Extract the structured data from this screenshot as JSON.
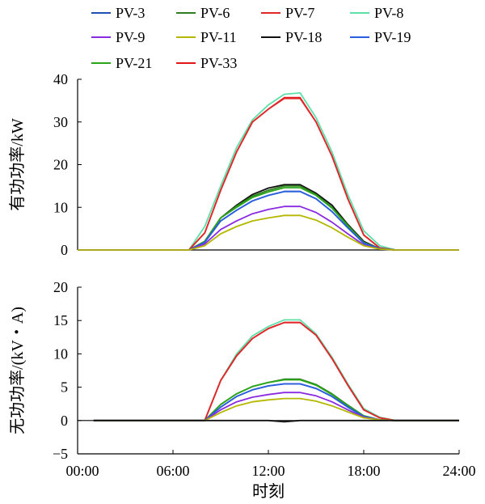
{
  "chart_data": {
    "type": "line",
    "legend": {
      "placement": "top",
      "entries": [
        {
          "name": "PV-3",
          "color": "#1f4fb4"
        },
        {
          "name": "PV-6",
          "color": "#2e7d1e"
        },
        {
          "name": "PV-7",
          "color": "#e0282b"
        },
        {
          "name": "PV-8",
          "color": "#5de0a8"
        },
        {
          "name": "PV-9",
          "color": "#8a2be2"
        },
        {
          "name": "PV-11",
          "color": "#b5b800"
        },
        {
          "name": "PV-18",
          "color": "#111111"
        },
        {
          "name": "PV-19",
          "color": "#2a5fe0"
        },
        {
          "name": "PV-21",
          "color": "#2aa61a"
        },
        {
          "name": "PV-33",
          "color": "#e01818"
        }
      ]
    },
    "x_axis": {
      "label": "时刻",
      "min": 0,
      "max": 24,
      "ticks": [
        0,
        6,
        12,
        18,
        24
      ],
      "tick_labels": [
        "00:00",
        "06:00",
        "12:00",
        "18:00",
        "24:00"
      ]
    },
    "panels": [
      {
        "id": "active",
        "ylabel": "有功功率/kW",
        "ylim": [
          0,
          40
        ],
        "ticks": [
          0,
          10,
          20,
          30,
          40
        ],
        "tick_labels": [
          "0",
          "10",
          "20",
          "30",
          "40"
        ],
        "series": [
          {
            "name": "PV-8",
            "x": [
              0,
              7,
              8,
              9,
              10,
              11,
              12,
              13,
              14,
              15,
              16,
              17,
              18,
              19,
              20,
              24
            ],
            "y": [
              0,
              0,
              5.5,
              15,
              24,
              30.5,
              34,
              36.5,
              36.8,
              31,
              23,
              13,
              4.5,
              1,
              0,
              0
            ]
          },
          {
            "name": "PV-33",
            "x": [
              0,
              7,
              8,
              9,
              10,
              11,
              12,
              13,
              14,
              15,
              16,
              17,
              18,
              19,
              20,
              24
            ],
            "y": [
              0,
              0,
              4,
              14,
              23,
              30,
              33,
              35.7,
              35.7,
              30,
              22,
              12,
              3.5,
              0.5,
              0,
              0
            ]
          },
          {
            "name": "PV-7",
            "x": [
              0,
              7,
              8,
              9,
              10,
              11,
              12,
              13,
              14,
              15,
              16,
              17,
              18,
              19,
              20,
              24
            ],
            "y": [
              0,
              0,
              4,
              14,
              23,
              30,
              33,
              35.5,
              35.5,
              30,
              22,
              12,
              3.5,
              0.5,
              0,
              0
            ]
          },
          {
            "name": "PV-18",
            "x": [
              0,
              7,
              8,
              9,
              10,
              11,
              12,
              13,
              14,
              15,
              16,
              17,
              18,
              19,
              20,
              24
            ],
            "y": [
              0,
              0,
              2,
              7.5,
              10.5,
              13,
              14.5,
              15.3,
              15.3,
              13.3,
              10.5,
              6,
              2,
              0.3,
              0,
              0
            ]
          },
          {
            "name": "PV-6",
            "x": [
              0,
              7,
              8,
              9,
              10,
              11,
              12,
              13,
              14,
              15,
              16,
              17,
              18,
              19,
              20,
              24
            ],
            "y": [
              0,
              0,
              2,
              7.5,
              10.3,
              12.6,
              14,
              15,
              15,
              13,
              10,
              5.8,
              1.8,
              0.3,
              0,
              0
            ]
          },
          {
            "name": "PV-21",
            "x": [
              0,
              7,
              8,
              9,
              10,
              11,
              12,
              13,
              14,
              15,
              16,
              17,
              18,
              19,
              20,
              24
            ],
            "y": [
              0,
              0,
              2,
              7.5,
              10,
              12.3,
              13.6,
              14.6,
              14.6,
              12.8,
              9.8,
              5.6,
              1.7,
              0.3,
              0,
              0
            ]
          },
          {
            "name": "PV-3",
            "x": [
              0,
              7,
              8,
              9,
              10,
              11,
              12,
              13,
              14,
              15,
              16,
              17,
              18,
              19,
              20,
              24
            ],
            "y": [
              0,
              0,
              1.8,
              6.8,
              9.3,
              11.5,
              12.8,
              13.7,
              13.7,
              12,
              9,
              5.2,
              1.6,
              0.3,
              0,
              0
            ]
          },
          {
            "name": "PV-19",
            "x": [
              0,
              7,
              8,
              9,
              10,
              11,
              12,
              13,
              14,
              15,
              16,
              17,
              18,
              19,
              20,
              24
            ],
            "y": [
              0,
              0,
              1.8,
              6.8,
              9.3,
              11.5,
              12.8,
              13.7,
              13.7,
              12,
              9,
              5.2,
              1.6,
              0.3,
              0,
              0
            ]
          },
          {
            "name": "PV-9",
            "x": [
              0,
              7,
              8,
              9,
              10,
              11,
              12,
              13,
              14,
              15,
              16,
              17,
              18,
              19,
              20,
              24
            ],
            "y": [
              0,
              0,
              1.4,
              4.8,
              6.8,
              8.5,
              9.5,
              10.2,
              10.2,
              8.8,
              6.5,
              3.8,
              1.2,
              0.2,
              0,
              0
            ]
          },
          {
            "name": "PV-11",
            "x": [
              0,
              7,
              8,
              9,
              10,
              11,
              12,
              13,
              14,
              15,
              16,
              17,
              18,
              19,
              20,
              24
            ],
            "y": [
              0,
              0,
              1,
              3.8,
              5.5,
              6.8,
              7.5,
              8.1,
              8.1,
              7,
              5.2,
              3,
              1,
              0.2,
              0,
              0
            ]
          }
        ]
      },
      {
        "id": "reactive",
        "ylabel": "无功功率/(kV・A)",
        "ylim": [
          -5,
          20
        ],
        "ticks": [
          -5,
          0,
          5,
          10,
          15,
          20
        ],
        "tick_labels": [
          "−5",
          "0",
          "5",
          "10",
          "15",
          "20"
        ],
        "series": [
          {
            "name": "PV-8",
            "x": [
              1,
              8,
              9,
              10,
              11,
              12,
              13,
              14,
              15,
              16,
              17,
              18,
              19,
              20,
              24
            ],
            "y": [
              0,
              0,
              6,
              10,
              12.7,
              14.1,
              15.1,
              15.1,
              13,
              9.5,
              5.5,
              1.8,
              0.5,
              0,
              0
            ]
          },
          {
            "name": "PV-33",
            "x": [
              1,
              8,
              9,
              10,
              11,
              12,
              13,
              14,
              15,
              16,
              17,
              18,
              19,
              20,
              24
            ],
            "y": [
              0,
              0,
              6,
              9.7,
              12.3,
              13.8,
              14.7,
              14.7,
              12.8,
              9.3,
              5.3,
              1.6,
              0.4,
              0,
              0
            ]
          },
          {
            "name": "PV-7",
            "x": [
              1,
              8,
              9,
              10,
              11,
              12,
              13,
              14,
              15,
              16,
              17,
              18,
              19,
              20,
              24
            ],
            "y": [
              0,
              0,
              6,
              9.7,
              12.3,
              13.8,
              14.7,
              14.7,
              12.8,
              9.3,
              5.3,
              1.6,
              0.4,
              0,
              0
            ]
          },
          {
            "name": "PV-6",
            "x": [
              1,
              8,
              9,
              10,
              11,
              12,
              13,
              14,
              15,
              16,
              17,
              18,
              19,
              20,
              24
            ],
            "y": [
              0,
              0,
              2.4,
              4,
              5.1,
              5.7,
              6.2,
              6.2,
              5.4,
              4,
              2.3,
              0.7,
              0.1,
              0,
              0
            ]
          },
          {
            "name": "PV-21",
            "x": [
              1,
              8,
              9,
              10,
              11,
              12,
              13,
              14,
              15,
              16,
              17,
              18,
              19,
              20,
              24
            ],
            "y": [
              0,
              0,
              2.4,
              4,
              5.1,
              5.7,
              6.1,
              6.1,
              5.3,
              3.9,
              2.2,
              0.7,
              0.1,
              0,
              0
            ]
          },
          {
            "name": "PV-3",
            "x": [
              1,
              8,
              9,
              10,
              11,
              12,
              13,
              14,
              15,
              16,
              17,
              18,
              19,
              20,
              24
            ],
            "y": [
              0,
              0,
              2,
              3.6,
              4.6,
              5.2,
              5.5,
              5.5,
              4.8,
              3.6,
              2,
              0.6,
              0.1,
              0,
              0
            ]
          },
          {
            "name": "PV-19",
            "x": [
              1,
              8,
              9,
              10,
              11,
              12,
              13,
              14,
              15,
              16,
              17,
              18,
              19,
              20,
              24
            ],
            "y": [
              0,
              0,
              2,
              3.6,
              4.6,
              5.2,
              5.5,
              5.5,
              4.8,
              3.6,
              2,
              0.6,
              0.1,
              0,
              0
            ]
          },
          {
            "name": "PV-9",
            "x": [
              1,
              8,
              9,
              10,
              11,
              12,
              13,
              14,
              15,
              16,
              17,
              18,
              19,
              20,
              24
            ],
            "y": [
              0,
              0,
              1.6,
              2.8,
              3.5,
              3.9,
              4.2,
              4.2,
              3.7,
              2.8,
              1.6,
              0.5,
              0.1,
              0,
              0
            ]
          },
          {
            "name": "PV-11",
            "x": [
              1,
              8,
              9,
              10,
              11,
              12,
              13,
              14,
              15,
              16,
              17,
              18,
              19,
              20,
              24
            ],
            "y": [
              0,
              0,
              1.2,
              2.2,
              2.8,
              3.1,
              3.3,
              3.3,
              2.9,
              2.2,
              1.3,
              0.4,
              0.1,
              0,
              0
            ]
          },
          {
            "name": "PV-18",
            "x": [
              1,
              8,
              9,
              10,
              11,
              12,
              13,
              14,
              15,
              16,
              17,
              18,
              19,
              20,
              24
            ],
            "y": [
              0,
              0,
              0,
              0,
              0,
              0,
              -0.2,
              0,
              0,
              0,
              0,
              0,
              0,
              0,
              0
            ]
          }
        ]
      }
    ]
  }
}
